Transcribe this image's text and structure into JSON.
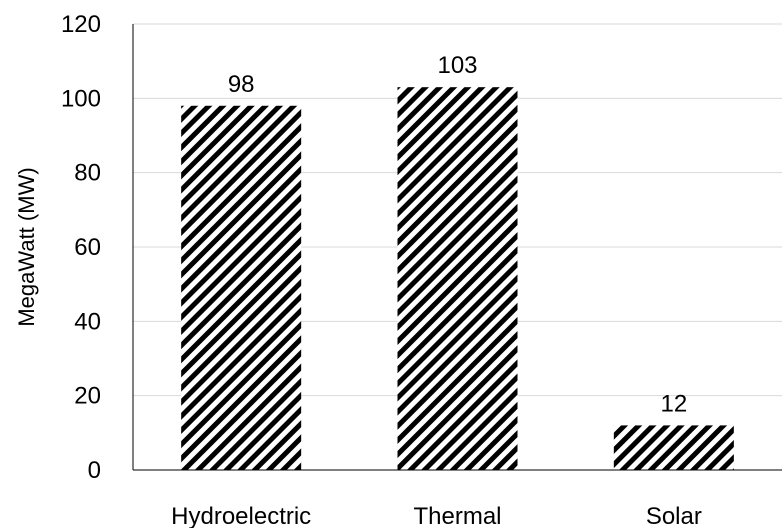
{
  "chart_data": {
    "type": "bar",
    "title": "",
    "xlabel": "",
    "ylabel": "MegaWatt (MW)",
    "categories": [
      "Hydroelectric",
      "Thermal",
      "Solar"
    ],
    "values": [
      98,
      103,
      12
    ],
    "data_labels": [
      "98",
      "103",
      "12"
    ],
    "ylim": [
      0,
      120
    ],
    "yticks": [
      0,
      20,
      40,
      60,
      80,
      100,
      120
    ],
    "grid": true,
    "legend": "none",
    "bar_fill": "diagonal-hatch",
    "colors": {
      "bar_stripe": "#000000",
      "bar_background": "#ffffff",
      "grid": "#d9d9d9",
      "axis": "#000000"
    }
  }
}
